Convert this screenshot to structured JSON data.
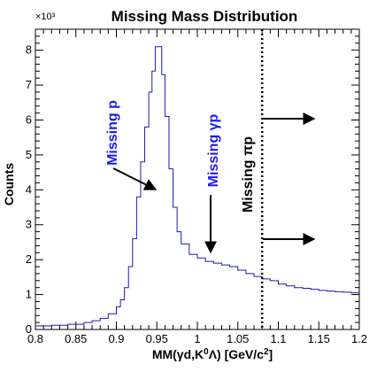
{
  "chart_data": {
    "type": "line",
    "title": "Missing Mass Distribution",
    "xlabel": "MM(γd,K⁰Λ) [GeV/c²]",
    "ylabel": "Counts",
    "y_exponent_label": "×10³",
    "xlim": [
      0.8,
      1.2
    ],
    "ylim": [
      0,
      8.6
    ],
    "x_ticks": [
      "0.8",
      "0.85",
      "0.9",
      "0.95",
      "1",
      "1.05",
      "1.1",
      "1.15",
      "1.2"
    ],
    "y_ticks": [
      "0",
      "1",
      "2",
      "3",
      "4",
      "5",
      "6",
      "7",
      "8"
    ],
    "series": [
      {
        "color": "#1a1ab4",
        "x": [
          0.8,
          0.82,
          0.84,
          0.86,
          0.87,
          0.88,
          0.89,
          0.9,
          0.905,
          0.91,
          0.915,
          0.92,
          0.925,
          0.93,
          0.935,
          0.94,
          0.944,
          0.948,
          0.952,
          0.956,
          0.96,
          0.965,
          0.97,
          0.975,
          0.98,
          0.99,
          1.0,
          1.01,
          1.02,
          1.03,
          1.04,
          1.05,
          1.06,
          1.07,
          1.08,
          1.09,
          1.1,
          1.11,
          1.12,
          1.13,
          1.14,
          1.15,
          1.16,
          1.17,
          1.18,
          1.19,
          1.2
        ],
        "y": [
          0.1,
          0.12,
          0.15,
          0.2,
          0.25,
          0.32,
          0.45,
          0.65,
          0.85,
          1.2,
          1.8,
          2.6,
          3.8,
          4.8,
          5.8,
          6.8,
          7.4,
          8.1,
          8.1,
          7.3,
          6.1,
          4.6,
          3.5,
          2.8,
          2.45,
          2.15,
          2.05,
          1.95,
          1.9,
          1.85,
          1.8,
          1.7,
          1.6,
          1.52,
          1.45,
          1.4,
          1.3,
          1.25,
          1.2,
          1.18,
          1.15,
          1.12,
          1.1,
          1.08,
          1.07,
          1.05,
          1.05
        ]
      }
    ],
    "vline_x": 1.08,
    "annotations": [
      {
        "text": "Missing p",
        "color": "#1a1aee"
      },
      {
        "text": "Missing γp",
        "color": "#1a1aee"
      },
      {
        "text": "Missing πp",
        "color": "#000000"
      }
    ]
  }
}
